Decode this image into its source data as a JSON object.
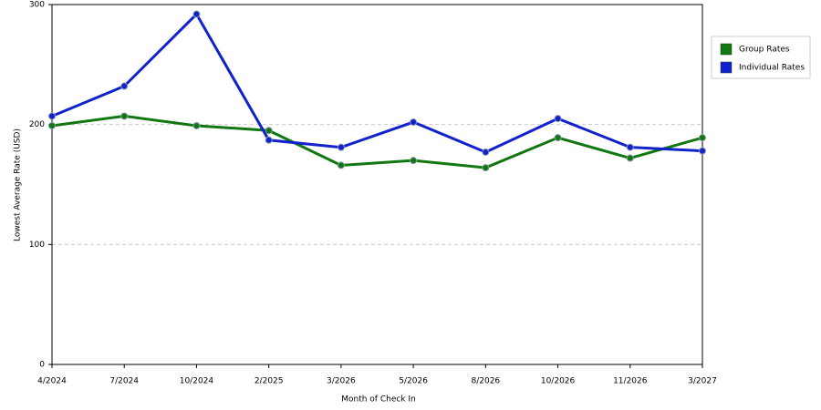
{
  "chart_data": {
    "type": "line",
    "x_label": "Month of Check In",
    "y_label": "Lowest Average Rate (USD)",
    "categories": [
      "4/2024",
      "7/2024",
      "10/2024",
      "2/2025",
      "3/2026",
      "5/2026",
      "8/2026",
      "10/2026",
      "11/2026",
      "3/2027"
    ],
    "series": [
      {
        "name": "Group Rates",
        "color": "#117711",
        "values": [
          199,
          207,
          199,
          195,
          166,
          170,
          164,
          189,
          172,
          189
        ]
      },
      {
        "name": "Individual Rates",
        "color": "#1122cc",
        "values": [
          207,
          232,
          292,
          187,
          181,
          202,
          177,
          205,
          181,
          178
        ]
      }
    ],
    "ylim": [
      0,
      300
    ],
    "yticks": [
      0,
      100,
      200,
      300
    ],
    "grid": true,
    "legend": "right"
  }
}
